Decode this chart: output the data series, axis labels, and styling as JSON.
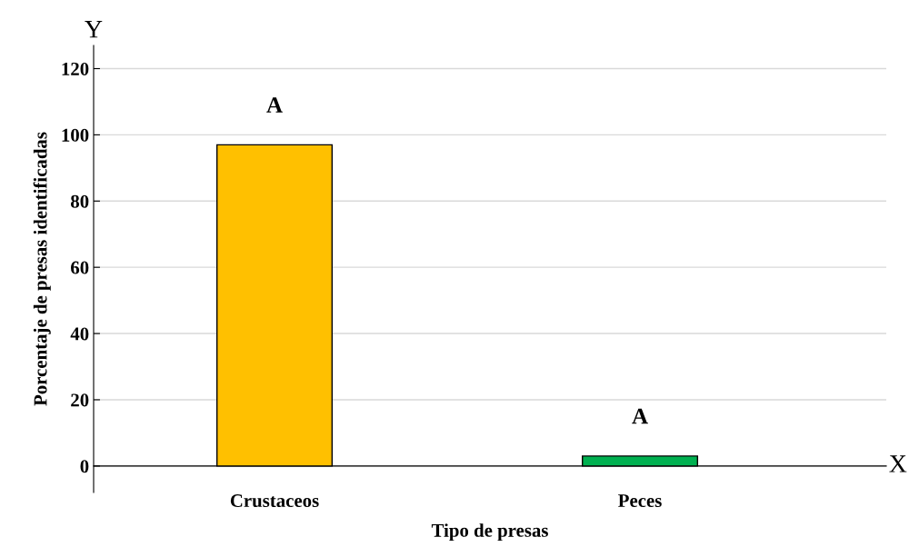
{
  "chart_data": {
    "type": "bar",
    "xlabel": "Tipo de presas",
    "ylabel": "Porcentaje de presas identificadas",
    "categories": [
      "Crustaceos",
      "Peces"
    ],
    "values": [
      97,
      3
    ],
    "colors": [
      "#ffc000",
      "#00b050"
    ],
    "ylim": [
      -8,
      127
    ],
    "yticks": [
      0,
      20,
      40,
      60,
      80,
      100,
      120
    ],
    "grid": "y",
    "annotations": [
      "A",
      "A",
      "Y",
      "X"
    ]
  }
}
